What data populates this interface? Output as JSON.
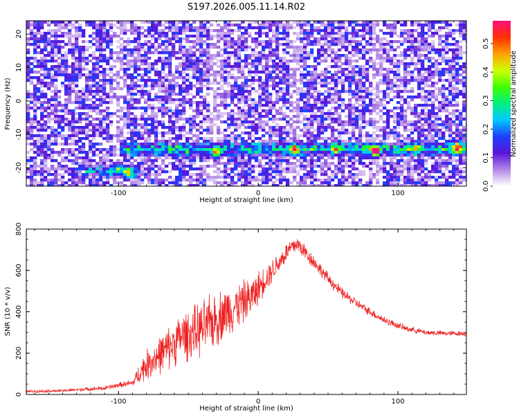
{
  "title": "S197.2026.005.11.14.R02",
  "chart_data": [
    {
      "type": "heatmap",
      "xlabel": "Height of straight line (km)",
      "ylabel": "Frequency (Hz)",
      "xlim": [
        -166,
        149
      ],
      "ylim": [
        -25.5,
        24
      ],
      "xticks": [
        -100,
        0,
        100
      ],
      "yticks": [
        -20,
        -10,
        0,
        10,
        20
      ],
      "colorbar": {
        "label": "Normalized spectral amplitude",
        "range": [
          0,
          0.58
        ],
        "ticks": [
          0.0,
          0.1,
          0.2,
          0.3,
          0.4,
          0.5
        ],
        "colors": [
          "#ffffff",
          "#b388e6",
          "#5a14d8",
          "#1e40ff",
          "#00c8ff",
          "#00f080",
          "#40ff00",
          "#d0ff00",
          "#ffa000",
          "#ff3000",
          "#ff1080"
        ]
      },
      "features": [
        {
          "name": "noise background",
          "x_range": [
            -166,
            149
          ],
          "y_range": [
            -25.5,
            24
          ],
          "amplitude": 0.1
        },
        {
          "name": "narrow band",
          "x_range": [
            -100,
            149
          ],
          "center_y": -14.5,
          "amplitude_peak": 0.5
        },
        {
          "name": "low band",
          "x_range": [
            -125,
            -85
          ],
          "center_y": -21,
          "amplitude_peak": 0.3
        }
      ],
      "hot_spots": [
        {
          "x": -30,
          "y": -15.5,
          "amp": 0.32
        },
        {
          "x": -93,
          "y": -21.5,
          "amp": 0.26
        },
        {
          "x": -100,
          "y": -20.5,
          "amp": 0.22
        },
        {
          "x": 26,
          "y": -14.5,
          "amp": 0.42
        },
        {
          "x": 84,
          "y": -15,
          "amp": 0.55
        },
        {
          "x": 142,
          "y": -14,
          "amp": 0.38
        },
        {
          "x": 55,
          "y": -14.5,
          "amp": 0.2
        },
        {
          "x": 113,
          "y": -14,
          "amp": 0.2
        }
      ]
    },
    {
      "type": "line",
      "xlabel": "Height of straight line (km)",
      "ylabel": "SNR (10 * v/v)",
      "xlim": [
        -166,
        149
      ],
      "ylim": [
        0,
        800
      ],
      "xticks": [
        -100,
        0,
        100
      ],
      "yticks": [
        0,
        200,
        400,
        600,
        800
      ],
      "color": "#ee2020",
      "series": [
        {
          "x": [
            -166,
            -140,
            -125,
            -110,
            -100,
            -90,
            -82,
            -75,
            -65,
            -55,
            -45,
            -35,
            -25,
            -15,
            -5,
            5,
            15,
            22,
            28,
            32,
            40,
            50,
            60,
            75,
            90,
            105,
            120,
            135,
            149
          ],
          "y": [
            15,
            18,
            25,
            30,
            45,
            55,
            130,
            170,
            220,
            280,
            300,
            340,
            390,
            430,
            470,
            560,
            640,
            700,
            730,
            700,
            640,
            560,
            490,
            420,
            360,
            320,
            300,
            295,
            295
          ],
          "noise": [
            8,
            8,
            10,
            12,
            15,
            20,
            80,
            100,
            120,
            140,
            150,
            160,
            150,
            130,
            110,
            80,
            60,
            60,
            50,
            50,
            40,
            35,
            30,
            25,
            22,
            18,
            15,
            15,
            15
          ]
        }
      ]
    }
  ]
}
